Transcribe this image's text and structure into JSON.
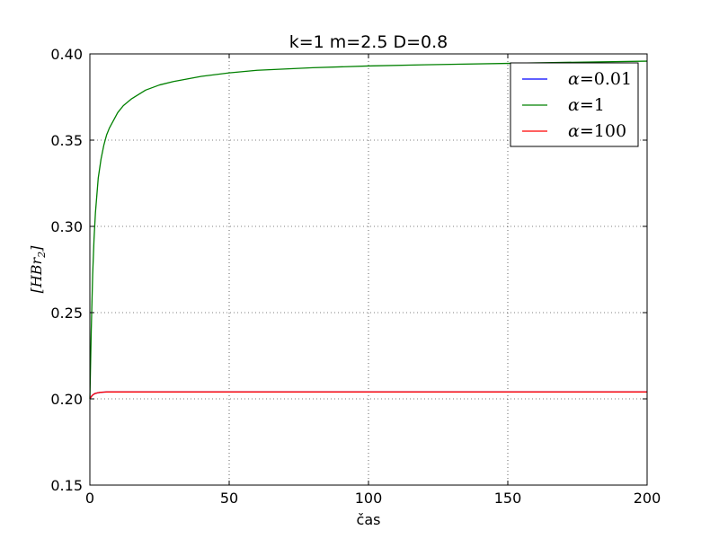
{
  "chart_data": {
    "type": "line",
    "title": "k=1 m=2.5 D=0.8",
    "xlabel": "čas",
    "ylabel": "[HBr2]",
    "xlim": [
      0,
      200
    ],
    "ylim": [
      0.15,
      0.4
    ],
    "xticks": [
      "0",
      "50",
      "100",
      "150",
      "200"
    ],
    "yticks": [
      "0.15",
      "0.20",
      "0.25",
      "0.30",
      "0.35",
      "0.40"
    ],
    "grid": true,
    "legend_position": "top-right",
    "series": [
      {
        "name": "α=0.01",
        "color": "#0000ff",
        "x": [
          0,
          0.3,
          0.6,
          1,
          1.5,
          2,
          3,
          4,
          5,
          6,
          8,
          10,
          15,
          20,
          50,
          100,
          150,
          200
        ],
        "y": [
          0.2,
          0.2008,
          0.2015,
          0.2022,
          0.2028,
          0.2032,
          0.2036,
          0.2038,
          0.2039,
          0.204,
          0.204,
          0.204,
          0.204,
          0.204,
          0.204,
          0.204,
          0.204,
          0.204
        ]
      },
      {
        "name": "α=1",
        "color": "#008000",
        "x": [
          0,
          0.5,
          1,
          1.5,
          2,
          3,
          4,
          5,
          6,
          7,
          8,
          10,
          12,
          15,
          20,
          25,
          30,
          40,
          50,
          60,
          80,
          100,
          120,
          150,
          175,
          200
        ],
        "y": [
          0.2,
          0.24,
          0.272,
          0.293,
          0.308,
          0.328,
          0.339,
          0.347,
          0.353,
          0.357,
          0.36,
          0.366,
          0.37,
          0.374,
          0.379,
          0.382,
          0.384,
          0.387,
          0.389,
          0.3905,
          0.392,
          0.393,
          0.3937,
          0.3945,
          0.3952,
          0.3958
        ]
      },
      {
        "name": "α=100",
        "color": "#ff0000",
        "x": [
          0,
          0.3,
          0.6,
          1,
          1.5,
          2,
          3,
          4,
          5,
          6,
          8,
          10,
          15,
          20,
          50,
          100,
          150,
          200
        ],
        "y": [
          0.2,
          0.2008,
          0.2015,
          0.2022,
          0.2028,
          0.2032,
          0.2036,
          0.2038,
          0.2039,
          0.204,
          0.204,
          0.204,
          0.204,
          0.204,
          0.204,
          0.204,
          0.204,
          0.204
        ]
      }
    ],
    "legend": {
      "entries": [
        {
          "label_var": "α",
          "label_op": "=",
          "label_val": "0.01"
        },
        {
          "label_var": "α",
          "label_op": "=",
          "label_val": "1"
        },
        {
          "label_var": "α",
          "label_op": "=",
          "label_val": "100"
        }
      ]
    },
    "ylabel_parts": {
      "open": "[",
      "main": "HBr",
      "sub": "2",
      "close": "]"
    }
  }
}
